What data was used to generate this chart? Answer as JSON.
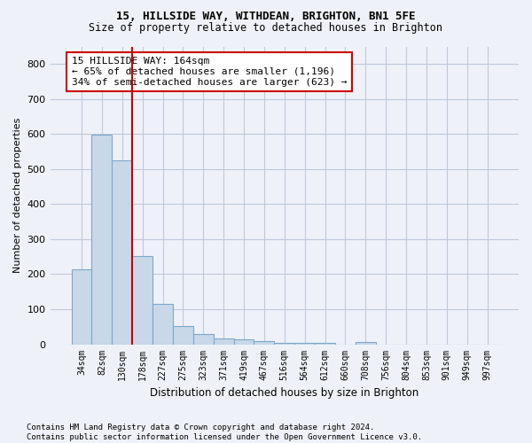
{
  "title1": "15, HILLSIDE WAY, WITHDEAN, BRIGHTON, BN1 5FE",
  "title2": "Size of property relative to detached houses in Brighton",
  "xlabel": "Distribution of detached houses by size in Brighton",
  "ylabel": "Number of detached properties",
  "footnote": "Contains HM Land Registry data © Crown copyright and database right 2024.\nContains public sector information licensed under the Open Government Licence v3.0.",
  "bin_labels": [
    "34sqm",
    "82sqm",
    "130sqm",
    "178sqm",
    "227sqm",
    "275sqm",
    "323sqm",
    "371sqm",
    "419sqm",
    "467sqm",
    "516sqm",
    "564sqm",
    "612sqm",
    "660sqm",
    "708sqm",
    "756sqm",
    "804sqm",
    "853sqm",
    "901sqm",
    "949sqm",
    "997sqm"
  ],
  "bar_values": [
    215,
    598,
    525,
    252,
    116,
    53,
    30,
    17,
    15,
    10,
    5,
    5,
    5,
    0,
    7,
    0,
    0,
    0,
    0,
    0,
    0
  ],
  "bar_color": "#c8d8e8",
  "bar_edgecolor": "#7da8c8",
  "grid_color": "#c0c8d8",
  "background_color": "#eef2f8",
  "vline_x": 2.5,
  "vline_color": "#cc0000",
  "annotation_text": "15 HILLSIDE WAY: 164sqm\n← 65% of detached houses are smaller (1,196)\n34% of semi-detached houses are larger (623) →",
  "annotation_box_color": "#ffffff",
  "annotation_box_edgecolor": "#cc0000",
  "ylim": [
    0,
    850
  ],
  "yticks": [
    0,
    100,
    200,
    300,
    400,
    500,
    600,
    700,
    800
  ],
  "title1_fontsize": 9,
  "title2_fontsize": 8.5,
  "annotation_fontsize": 8,
  "xlabel_fontsize": 8.5,
  "ylabel_fontsize": 8,
  "footnote_fontsize": 6.5,
  "xtick_fontsize": 7,
  "ytick_fontsize": 8
}
